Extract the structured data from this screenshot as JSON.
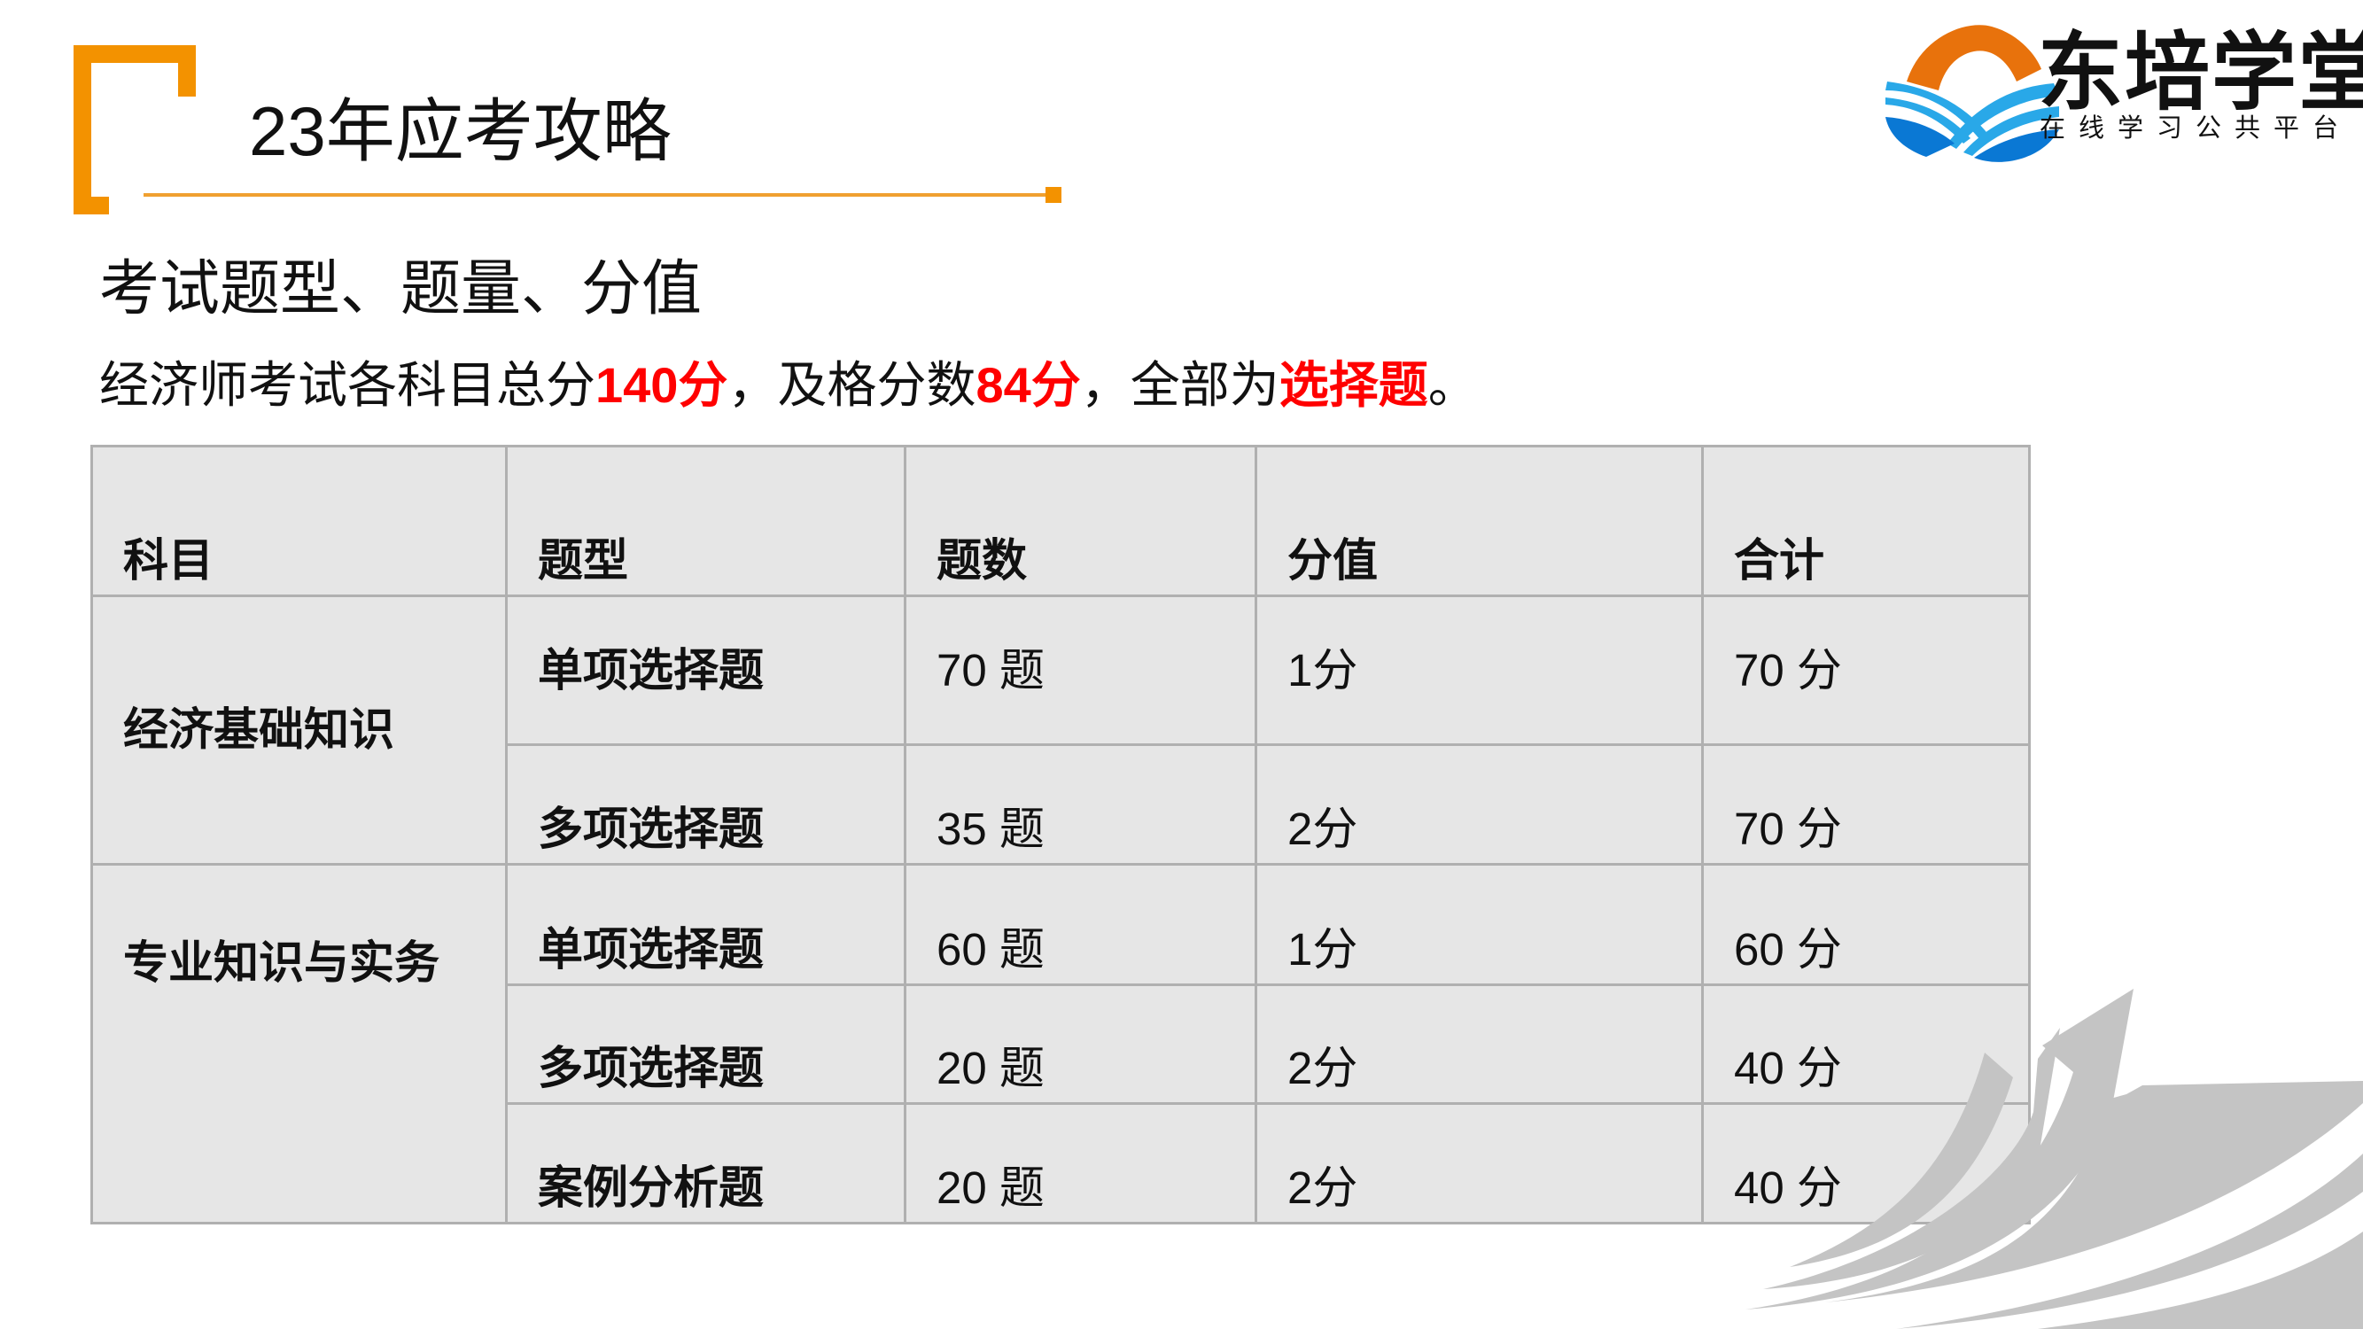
{
  "header": {
    "title": "23年应考攻略",
    "accent_color": "#f39200"
  },
  "logo": {
    "name": "东培学堂",
    "tagline": "在线学习公共平台",
    "colors": {
      "orange": "#e8720c",
      "light_blue": "#29a8e8",
      "blue": "#0a78d4"
    }
  },
  "section": {
    "subtitle": "考试题型、题量、分值",
    "sentence": {
      "part1": "经济师考试各科目总分",
      "total": "140分",
      "part2": "，及格分数",
      "pass": "84分",
      "part3": "，全部为",
      "type": "选择题",
      "part4": "。"
    },
    "highlight_color": "#ff0000"
  },
  "table": {
    "headers": [
      "科目",
      "题型",
      "题数",
      "分值",
      "合计"
    ],
    "groups": [
      {
        "subject": "经济基础知识",
        "rows": [
          {
            "type": "单项选择题",
            "count": "70 题",
            "score": "1分",
            "total": "70 分"
          },
          {
            "type": "多项选择题",
            "count": "35 题",
            "score": "2分",
            "total": "70 分"
          }
        ]
      },
      {
        "subject": "专业知识与实务",
        "rows": [
          {
            "type": "单项选择题",
            "count": "60 题",
            "score": "1分",
            "total": "60 分"
          },
          {
            "type": "多项选择题",
            "count": "20 题",
            "score": "2分",
            "total": "40 分"
          },
          {
            "type": "案例分析题",
            "count": "20 题",
            "score": "2分",
            "total": "40 分"
          }
        ]
      }
    ]
  }
}
